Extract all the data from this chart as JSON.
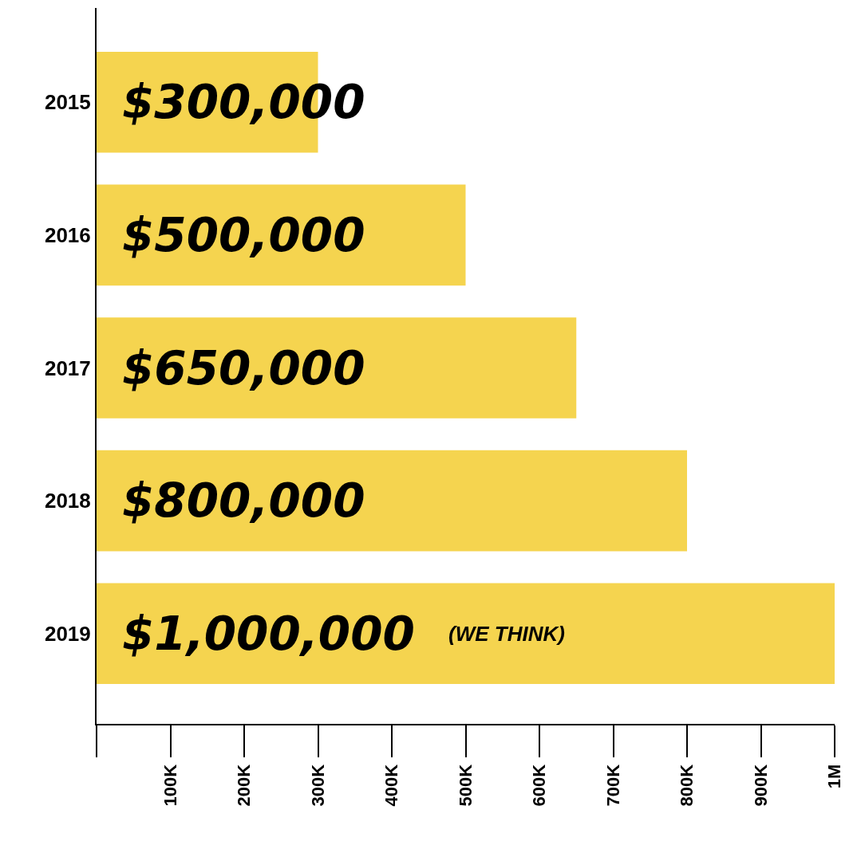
{
  "chart_data": {
    "type": "bar",
    "orientation": "horizontal",
    "categories": [
      "2015",
      "2016",
      "2017",
      "2018",
      "2019"
    ],
    "values": [
      300000,
      500000,
      650000,
      800000,
      1000000
    ],
    "value_labels": [
      "$300,000",
      "$500,000",
      "$650,000",
      "$800,000",
      "$1,000,000"
    ],
    "color": "#f5d44f",
    "xlim": [
      0,
      1000000
    ],
    "xticks": [
      {
        "value": 0,
        "label": null
      },
      {
        "value": 100000,
        "label": "100K"
      },
      {
        "value": 200000,
        "label": "200K"
      },
      {
        "value": 300000,
        "label": "300K"
      },
      {
        "value": 400000,
        "label": "400K"
      },
      {
        "value": 500000,
        "label": "500K"
      },
      {
        "value": 600000,
        "label": "600K"
      },
      {
        "value": 700000,
        "label": "700K"
      },
      {
        "value": 800000,
        "label": "800K"
      },
      {
        "value": 900000,
        "label": "900K"
      },
      {
        "value": 1000000,
        "label": "1M"
      }
    ],
    "annotations": [
      "(WE THINK)"
    ],
    "grid": false
  }
}
